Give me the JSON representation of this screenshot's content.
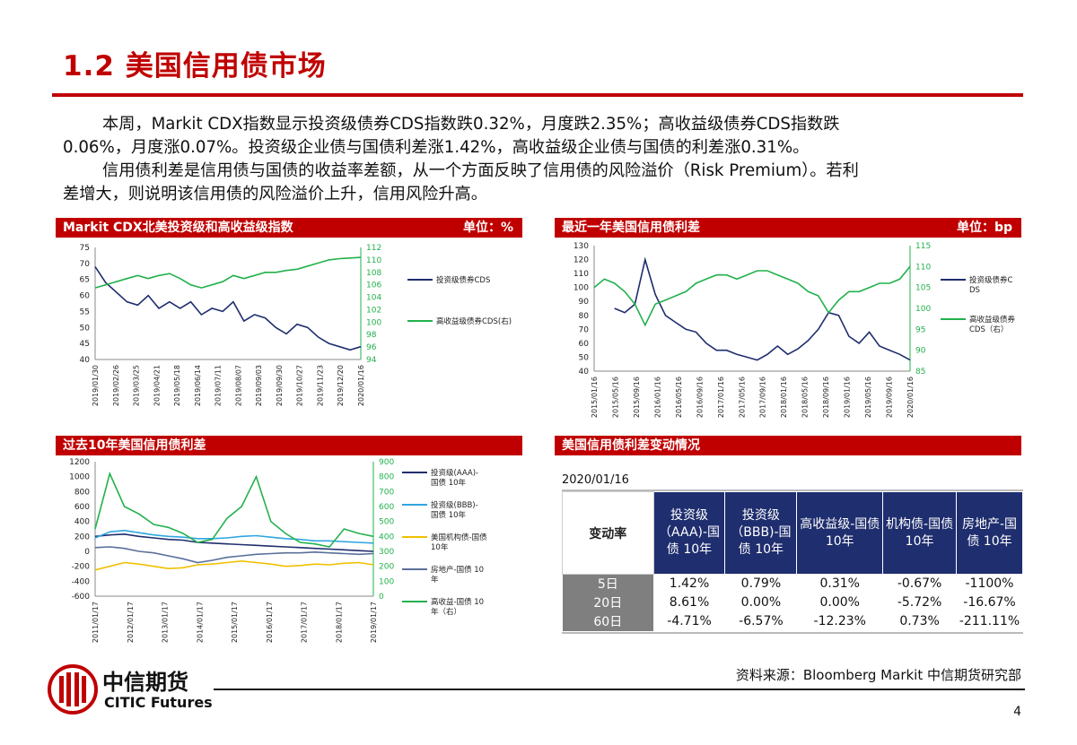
{
  "slide": {
    "title": "1.2 美国信用债市场",
    "paragraphs": [
      "本周，Markit CDX指数显示投资级债券CDS指数跌0.32%，月度跌2.35%；高收益级债券CDS指数跌",
      "0.06%，月度涨0.07%。投资级企业债与国债利差涨1.42%，高收益级企业债与国债的利差涨0.31%。",
      "信用债利差是信用债与国债的收益率差额，从一个方面反映了信用债的风险溢价（Risk Premium）。若利",
      "差增大，则说明该信用债的风险溢价上升，信用风险升高。"
    ],
    "source": "资料来源：Bloomberg Markit 中信期货研究部",
    "page_number": "4",
    "logo": {
      "cn": "中信期货",
      "en": "CITIC Futures"
    },
    "colors": {
      "accent": "#c00000",
      "navy": "#1f2e6e",
      "green": "#22b14c",
      "gray": "#7f7f7f"
    }
  },
  "chart_data": [
    {
      "id": "cdx",
      "type": "line",
      "title": "Markit CDX北美投资级和高收益级指数",
      "unit": "单位：%",
      "x_labels": [
        "2019/01/30",
        "2019/02/26",
        "2019/03/25",
        "2019/04/21",
        "2019/05/18",
        "2019/06/14",
        "2019/07/11",
        "2019/08/07",
        "2019/09/03",
        "2019/09/30",
        "2019/10/27",
        "2019/11/23",
        "2019/12/20",
        "2020/01/16"
      ],
      "y_left": {
        "min": 40,
        "max": 75,
        "ticks": [
          40,
          45,
          50,
          55,
          60,
          65,
          70,
          75
        ]
      },
      "y_right": {
        "min": 94,
        "max": 112,
        "ticks": [
          94,
          96,
          98,
          100,
          102,
          104,
          106,
          108,
          110,
          112
        ]
      },
      "series": [
        {
          "name": "投资级债券CDS",
          "axis": "left",
          "color": "#1f2e6e",
          "values": [
            69,
            64,
            61,
            58,
            57,
            60,
            56,
            58,
            56,
            58,
            54,
            56,
            55,
            58,
            52,
            54,
            53,
            50,
            48,
            51,
            50,
            47,
            45,
            44,
            43,
            44
          ]
        },
        {
          "name": "高收益级债券CDS(右)",
          "axis": "right",
          "color": "#22b14c",
          "values": [
            105.5,
            106,
            106.5,
            107,
            107.5,
            107,
            107.5,
            107.8,
            107,
            106,
            105.5,
            106,
            106.5,
            107.5,
            107,
            107.5,
            108,
            108,
            108.3,
            108.5,
            109,
            109.5,
            110,
            110.2,
            110.3,
            110.4
          ]
        }
      ]
    },
    {
      "id": "spread1y",
      "type": "line",
      "title": "最近一年美国信用债利差",
      "unit": "单位：bp",
      "x_labels": [
        "2015/01/16",
        "2015/05/16",
        "2015/09/16",
        "2016/01/16",
        "2016/05/16",
        "2016/09/16",
        "2017/01/16",
        "2017/05/16",
        "2017/09/16",
        "2018/01/16",
        "2018/05/16",
        "2018/09/16",
        "2019/01/16",
        "2019/05/16",
        "2019/09/16",
        "2020/01/16"
      ],
      "y_left": {
        "min": 40,
        "max": 130,
        "ticks": [
          40,
          50,
          60,
          70,
          80,
          90,
          100,
          110,
          120,
          130
        ]
      },
      "y_right": {
        "min": 85,
        "max": 115,
        "ticks": [
          85,
          90,
          95,
          100,
          105,
          110,
          115
        ]
      },
      "series": [
        {
          "name": "投资级债券CDS",
          "axis": "left",
          "color": "#1f2e6e",
          "values": [
            null,
            null,
            85,
            82,
            88,
            120,
            95,
            80,
            75,
            70,
            68,
            60,
            55,
            55,
            52,
            50,
            48,
            52,
            58,
            52,
            56,
            62,
            70,
            82,
            80,
            65,
            60,
            68,
            58,
            55,
            52,
            48
          ]
        },
        {
          "name": "高收益级债券CDS（右）",
          "axis": "right",
          "color": "#22b14c",
          "values": [
            105,
            107,
            106,
            104,
            101,
            96,
            101,
            102,
            103,
            104,
            106,
            107,
            108,
            108,
            107,
            108,
            109,
            109,
            108,
            107,
            106,
            104,
            103,
            99,
            102,
            104,
            104,
            105,
            106,
            106,
            107,
            110
          ]
        }
      ]
    },
    {
      "id": "spread10y",
      "type": "line",
      "title": "过去10年美国信用债利差",
      "x_labels": [
        "2011/01/17",
        "2012/01/17",
        "2013/01/17",
        "2014/01/17",
        "2015/01/17",
        "2016/01/17",
        "2017/01/17",
        "2018/01/17",
        "2019/01/17"
      ],
      "y_left": {
        "min": -600,
        "max": 1200,
        "ticks": [
          -600,
          -400,
          -200,
          0,
          200,
          400,
          600,
          800,
          1000,
          1200
        ]
      },
      "y_right": {
        "min": 0,
        "max": 900,
        "ticks": [
          0,
          100,
          200,
          300,
          400,
          500,
          600,
          700,
          800,
          900
        ]
      },
      "series": [
        {
          "name": "投资级(AAA)-国债 10年",
          "axis": "left",
          "color": "#1f2e6e",
          "values": [
            200,
            220,
            230,
            200,
            180,
            160,
            150,
            120,
            110,
            100,
            90,
            80,
            70,
            60,
            50,
            40,
            30,
            20,
            10,
            0
          ]
        },
        {
          "name": "投资级(BBB)-国债 10年",
          "axis": "left",
          "color": "#2fa6e0",
          "values": [
            180,
            260,
            280,
            250,
            220,
            200,
            190,
            170,
            170,
            180,
            200,
            210,
            190,
            170,
            160,
            140,
            140,
            130,
            120,
            110
          ]
        },
        {
          "name": "美国机构债-国债 10年",
          "axis": "left",
          "color": "#f0c000",
          "values": [
            -250,
            -200,
            -150,
            -170,
            -200,
            -230,
            -220,
            -180,
            -170,
            -150,
            -130,
            -150,
            -170,
            -200,
            -190,
            -170,
            -180,
            -160,
            -150,
            -180
          ]
        },
        {
          "name": "房地产-国债 10年",
          "axis": "left",
          "color": "#5a6f9a",
          "values": [
            50,
            60,
            40,
            0,
            -20,
            -60,
            -100,
            -150,
            -120,
            -80,
            -60,
            -40,
            -30,
            -20,
            -20,
            -10,
            -20,
            -30,
            -40,
            -30
          ]
        },
        {
          "name": "高收益-国债 10年（右）",
          "axis": "right",
          "color": "#22b14c",
          "values": [
            450,
            820,
            600,
            550,
            480,
            460,
            420,
            360,
            380,
            520,
            600,
            800,
            500,
            420,
            360,
            350,
            330,
            450,
            420,
            400
          ]
        }
      ]
    }
  ],
  "change_table": {
    "title": "美国信用债利差变动情况",
    "date": "2020/01/16",
    "corner": "变动率",
    "columns": [
      "投资级（AAA)-国债 10年",
      "投资级（BBB)-国债 10年",
      "高收益级-国债 10年",
      "机构债-国债 10年",
      "房地产-国债 10年"
    ],
    "rows": [
      {
        "label": "5日",
        "values": [
          "1.42%",
          "0.79%",
          "0.31%",
          "-0.67%",
          "-1100%"
        ]
      },
      {
        "label": "20日",
        "values": [
          "8.61%",
          "0.00%",
          "0.00%",
          "-5.72%",
          "-16.67%"
        ]
      },
      {
        "label": "60日",
        "values": [
          "-4.71%",
          "-6.57%",
          "-12.23%",
          "0.73%",
          "-211.11%"
        ]
      }
    ]
  }
}
